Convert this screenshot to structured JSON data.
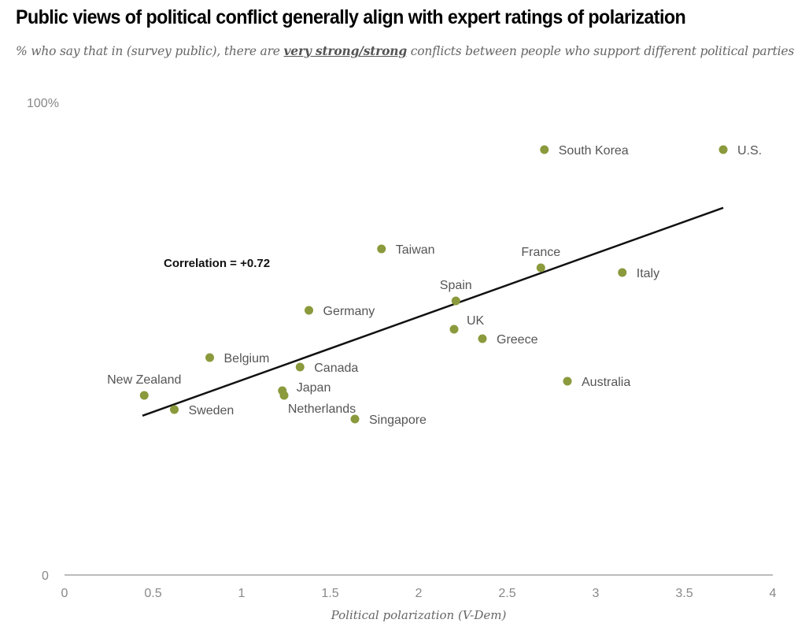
{
  "header": {
    "title": "Public views of political conflict generally align with expert ratings of polarization",
    "subtitle_pre": "% who say that in (survey public), there are ",
    "subtitle_emphasis": "very strong/strong",
    "subtitle_post": " conflicts between people who support different political parties"
  },
  "colors": {
    "point": "#8a9a3c",
    "trendline": "#111111",
    "axis": "#bbbbbb"
  },
  "chart_data": {
    "type": "scatter",
    "title": "Public views of political conflict generally align with expert ratings of polarization",
    "xlabel": "Political polarization (V-Dem)",
    "ylabel": "% who say there are very strong/strong conflicts between people who support different political parties",
    "xlim": [
      0,
      4
    ],
    "ylim": [
      0,
      100
    ],
    "x_ticks": [
      {
        "value": 0,
        "label": "0"
      },
      {
        "value": 0.5,
        "label": "0.5"
      },
      {
        "value": 1,
        "label": "1"
      },
      {
        "value": 1.5,
        "label": "1.5"
      },
      {
        "value": 2,
        "label": "2"
      },
      {
        "value": 2.5,
        "label": "2.5"
      },
      {
        "value": 3,
        "label": "3"
      },
      {
        "value": 3.5,
        "label": "3.5"
      },
      {
        "value": 4,
        "label": "4"
      }
    ],
    "y_ticks": [
      {
        "value": 100,
        "label": "100%"
      },
      {
        "value": 0,
        "label": "0"
      }
    ],
    "grid": false,
    "annotation": "Correlation = +0.72",
    "annotation_at": {
      "x": 1.4,
      "y": 66
    },
    "trendline": {
      "x": [
        0.44,
        3.72
      ],
      "y": [
        33.7,
        77.7
      ]
    },
    "points": [
      {
        "name": "South Korea",
        "x": 2.71,
        "y": 90,
        "label_pos": "right"
      },
      {
        "name": "U.S.",
        "x": 3.72,
        "y": 90,
        "label_pos": "right"
      },
      {
        "name": "Taiwan",
        "x": 1.79,
        "y": 69,
        "label_pos": "right"
      },
      {
        "name": "France",
        "x": 2.69,
        "y": 65,
        "label_pos": "above"
      },
      {
        "name": "Italy",
        "x": 3.15,
        "y": 64,
        "label_pos": "right"
      },
      {
        "name": "Spain",
        "x": 2.21,
        "y": 58,
        "label_pos": "above"
      },
      {
        "name": "Germany",
        "x": 1.38,
        "y": 56,
        "label_pos": "right"
      },
      {
        "name": "UK",
        "x": 2.2,
        "y": 52,
        "label_pos": "above-right"
      },
      {
        "name": "Greece",
        "x": 2.36,
        "y": 50,
        "label_pos": "right"
      },
      {
        "name": "Belgium",
        "x": 0.82,
        "y": 46,
        "label_pos": "right"
      },
      {
        "name": "Canada",
        "x": 1.33,
        "y": 44,
        "label_pos": "right"
      },
      {
        "name": "Australia",
        "x": 2.84,
        "y": 41,
        "label_pos": "right"
      },
      {
        "name": "Japan",
        "x": 1.23,
        "y": 39,
        "label_pos": "right"
      },
      {
        "name": "Netherlands",
        "x": 1.24,
        "y": 38,
        "label_pos": "below"
      },
      {
        "name": "New Zealand",
        "x": 0.45,
        "y": 38,
        "label_pos": "above"
      },
      {
        "name": "Sweden",
        "x": 0.62,
        "y": 35,
        "label_pos": "right"
      },
      {
        "name": "Singapore",
        "x": 1.64,
        "y": 33,
        "label_pos": "right"
      }
    ]
  }
}
